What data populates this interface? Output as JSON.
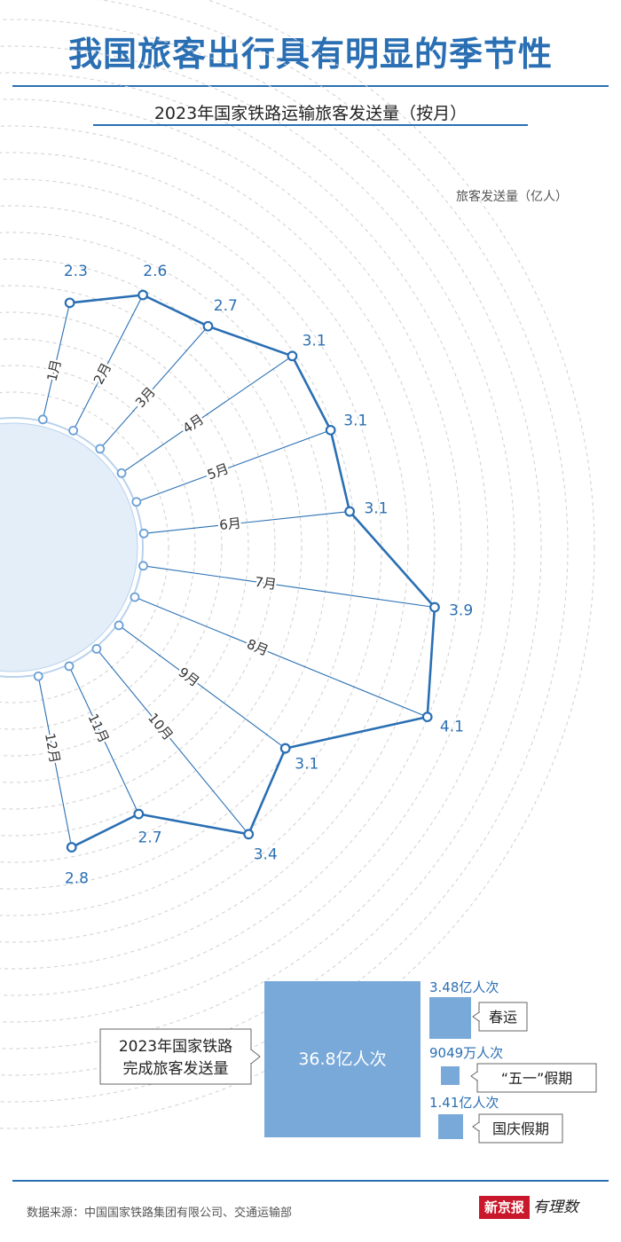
{
  "header": {
    "title": "我国旅客出行具有明显的季节性",
    "subtitle": "2023年国家铁路运输旅客发送量（按月）",
    "unit_label": "旅客发送量（亿人）"
  },
  "chart_data": {
    "type": "radial-line",
    "title": "2023年国家铁路运输旅客发送量（按月）",
    "unit": "旅客发送量（亿人）",
    "categories": [
      "1月",
      "2月",
      "3月",
      "4月",
      "5月",
      "6月",
      "7月",
      "8月",
      "9月",
      "10月",
      "11月",
      "12月"
    ],
    "values": [
      2.3,
      2.6,
      2.7,
      3.1,
      3.1,
      3.1,
      3.9,
      4.1,
      3.1,
      3.4,
      2.7,
      2.8
    ],
    "value_labels": [
      "2.3",
      "2.6",
      "2.7",
      "3.1",
      "3.1",
      "3.1",
      "3.9",
      "4.1",
      "3.1",
      "3.4",
      "2.7",
      "2.8"
    ],
    "color": "#2a6fb3"
  },
  "summary": {
    "total_label_line1": "2023年国家铁路",
    "total_label_line2": "完成旅客发送量",
    "total_value": "36.8亿人次",
    "items": [
      {
        "value": "3.48亿人次",
        "name": "春运"
      },
      {
        "value": "9049万人次",
        "name": "“五一”假期"
      },
      {
        "value": "1.41亿人次",
        "name": "国庆假期"
      }
    ]
  },
  "footer": {
    "source": "数据来源：中国国家铁路集团有限公司、交通运输部",
    "brand_main": "新京报",
    "brand_sub": "有理数"
  },
  "colors": {
    "accent": "#2a6fb3",
    "block": "#79a9d9",
    "disc": "#e3eef9"
  }
}
